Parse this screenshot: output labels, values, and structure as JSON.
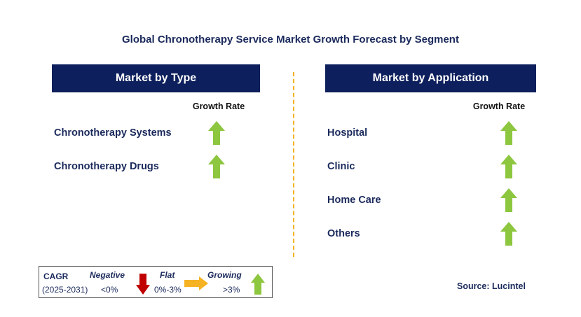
{
  "title": "Global Chronotherapy Service Market Growth Forecast by Segment",
  "colors": {
    "header_bg": "#0d1f5c",
    "text": "#1b2a5c",
    "up": "#8dc63f",
    "down": "#c00000",
    "flat": "#f5b324",
    "divider": "#f5b324"
  },
  "left_panel": {
    "header": "Market by Type",
    "growth_rate_label": "Growth Rate",
    "rows": [
      {
        "label": "Chronotherapy Systems",
        "trend": "growing"
      },
      {
        "label": "Chronotherapy Drugs",
        "trend": "growing"
      }
    ]
  },
  "right_panel": {
    "header": "Market by Application",
    "growth_rate_label": "Growth Rate",
    "rows": [
      {
        "label": "Hospital",
        "trend": "growing"
      },
      {
        "label": "Clinic",
        "trend": "growing"
      },
      {
        "label": "Home Care",
        "trend": "growing"
      },
      {
        "label": "Others",
        "trend": "growing"
      }
    ]
  },
  "legend": {
    "cagr": "CAGR",
    "period": "(2025-2031)",
    "negative_label": "Negative",
    "negative_value": "<0%",
    "flat_label": "Flat",
    "flat_value": "0%-3%",
    "growing_label": "Growing",
    "growing_value": ">3%"
  },
  "source": "Source: Lucintel"
}
